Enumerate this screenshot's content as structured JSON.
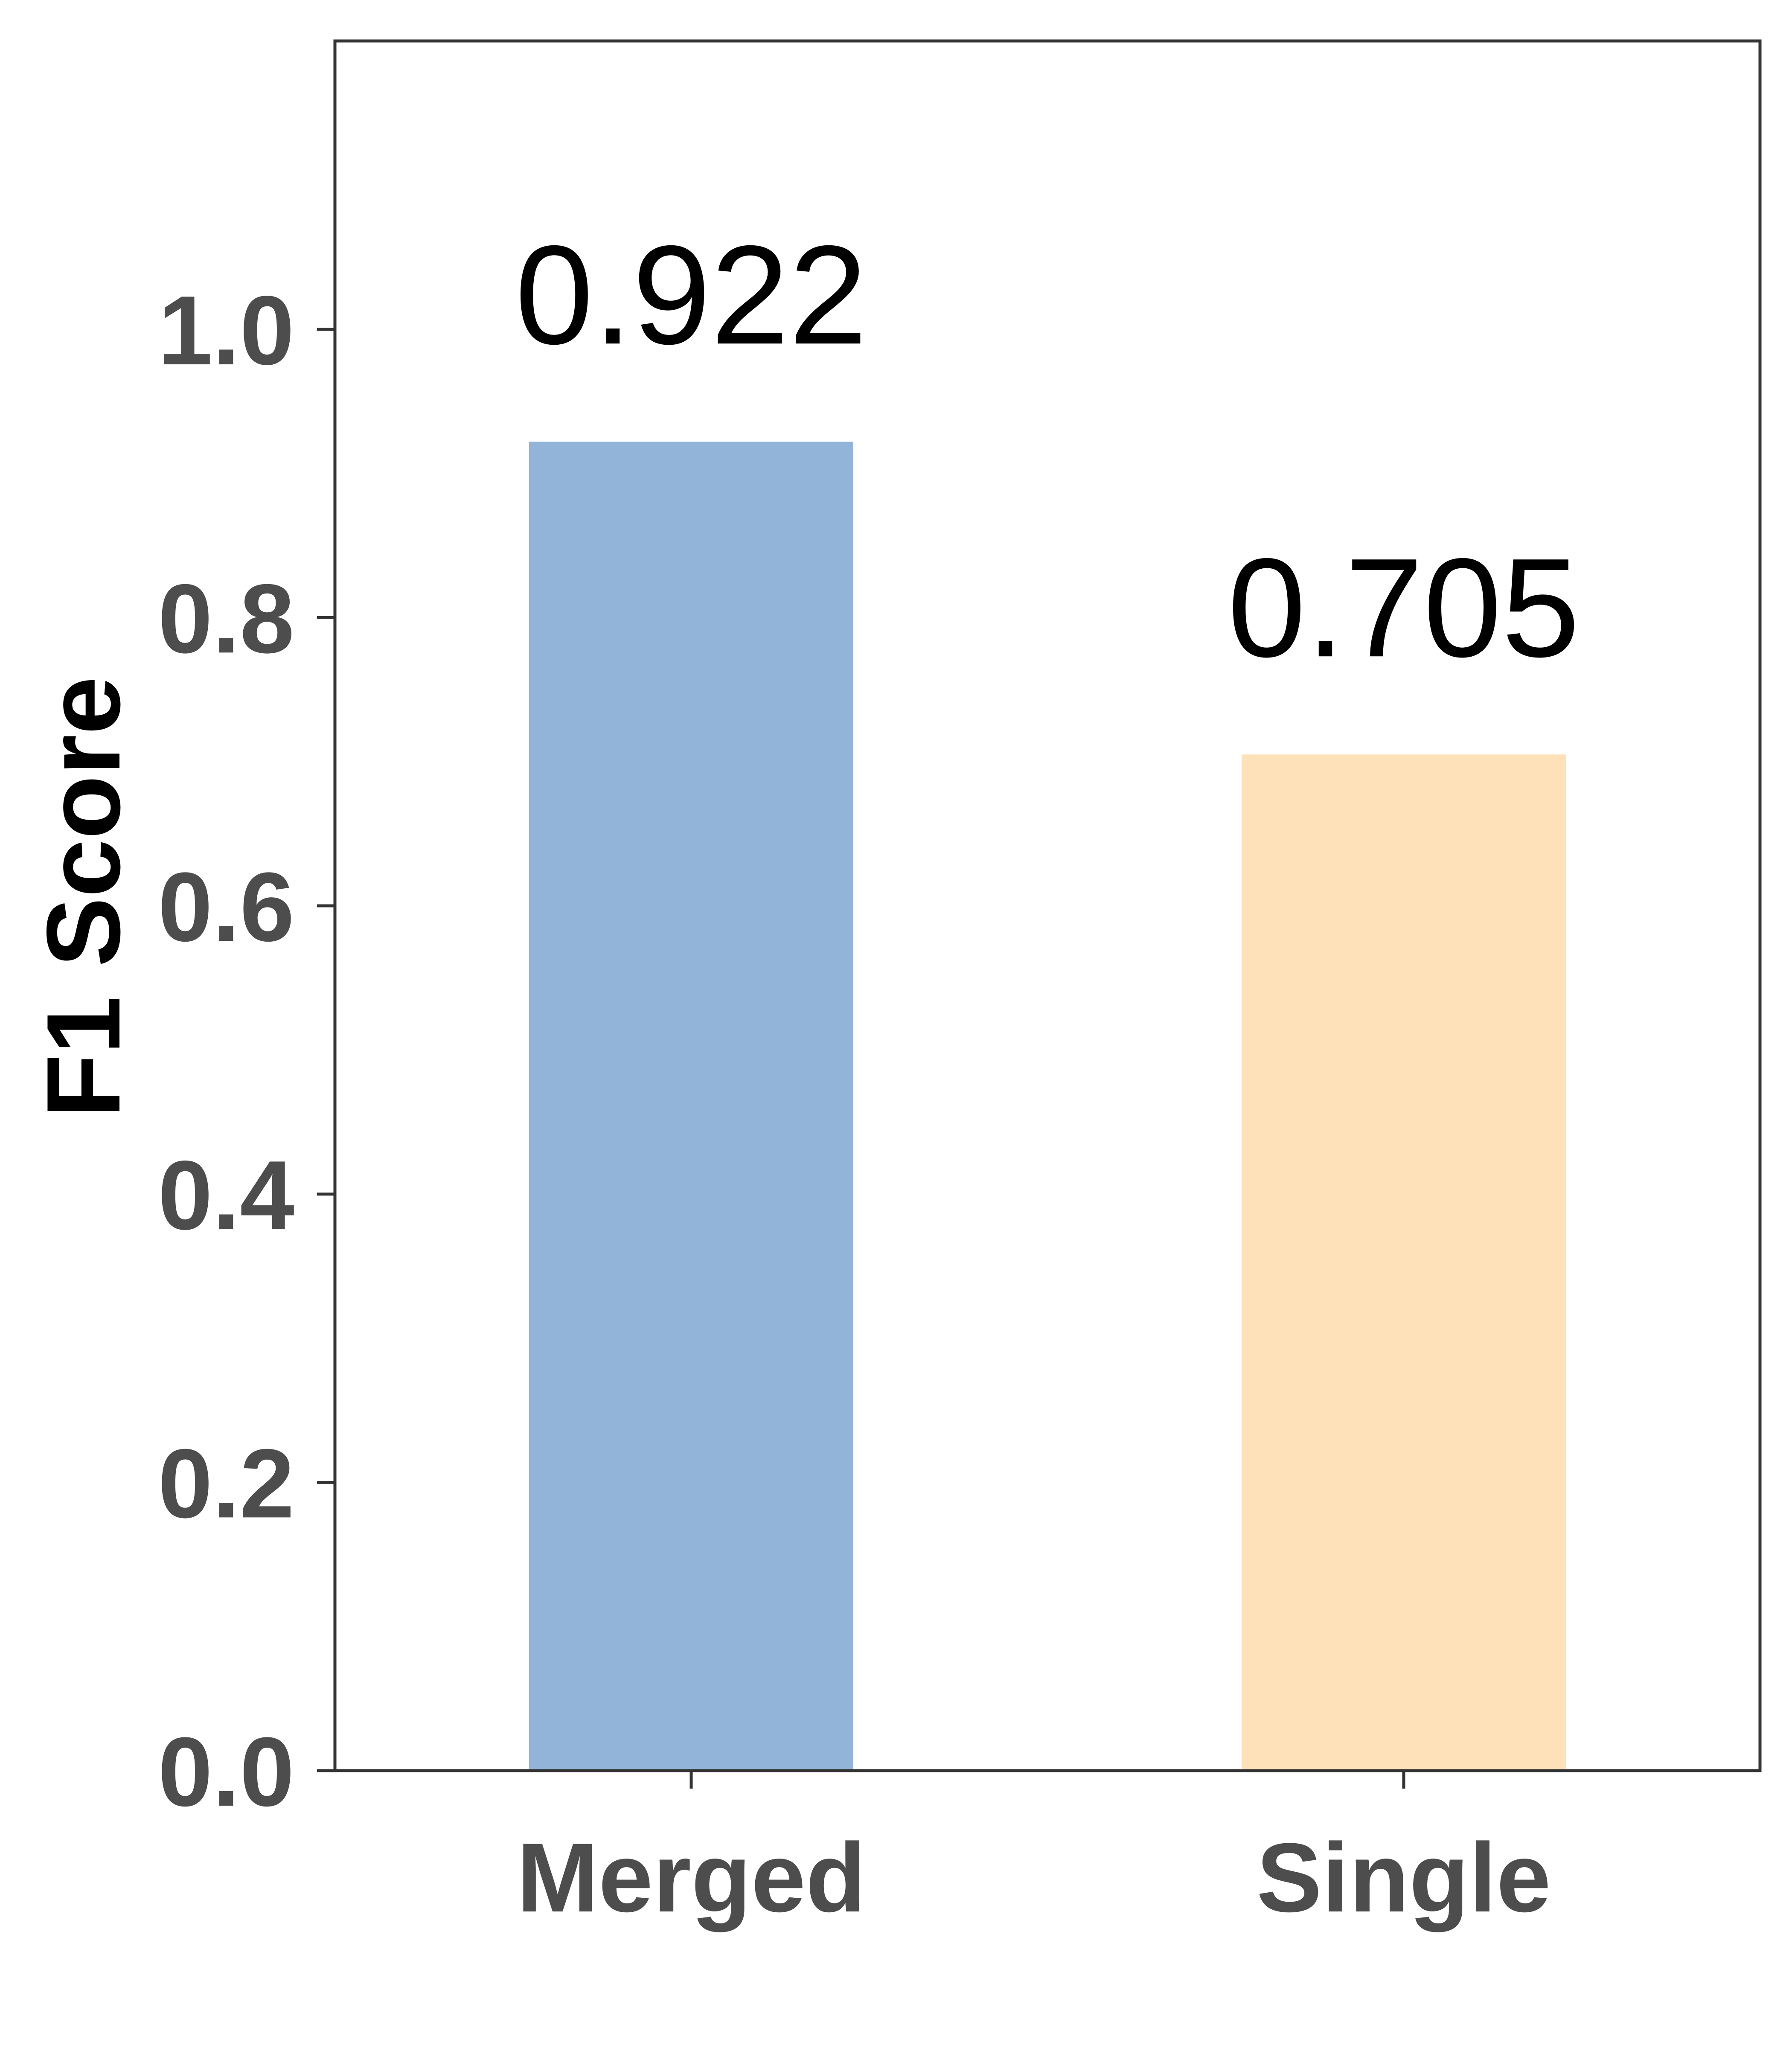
{
  "chart_data": {
    "type": "bar",
    "categories": [
      "Merged",
      "Single"
    ],
    "values": [
      0.922,
      0.705
    ],
    "data_labels": [
      "0.922",
      "0.705"
    ],
    "colors": [
      "#92b4d8",
      "#fee1b8"
    ],
    "title": "",
    "xlabel": "",
    "ylabel": "F1 Score",
    "ylim": [
      0,
      1.2
    ],
    "yticks": [
      0.0,
      0.2,
      0.4,
      0.6,
      0.8,
      1.0
    ],
    "ytick_labels": [
      "0.0",
      "0.2",
      "0.4",
      "0.6",
      "0.8",
      "1.0"
    ],
    "grid": false,
    "legend": "none"
  }
}
